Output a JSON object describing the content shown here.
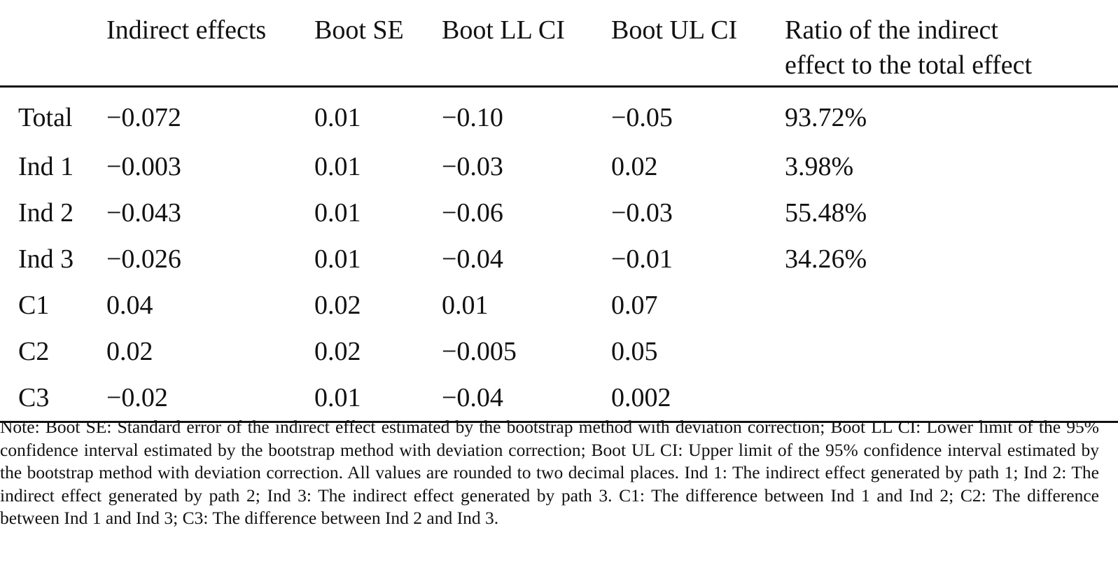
{
  "table": {
    "headers": [
      "",
      "Indirect effects",
      "Boot SE",
      "Boot LL CI",
      "Boot UL CI",
      [
        "Ratio of the indirect",
        "effect to the total effect"
      ]
    ],
    "rows": [
      [
        "Total",
        "−0.072",
        "0.01",
        "−0.10",
        "−0.05",
        "93.72%"
      ],
      [
        "Ind 1",
        "−0.003",
        "0.01",
        "−0.03",
        "0.02",
        "3.98%"
      ],
      [
        "Ind 2",
        "−0.043",
        "0.01",
        "−0.06",
        "−0.03",
        "55.48%"
      ],
      [
        "Ind 3",
        "−0.026",
        "0.01",
        "−0.04",
        "−0.01",
        "34.26%"
      ],
      [
        "C1",
        "0.04",
        "0.02",
        "0.01",
        "0.07",
        ""
      ],
      [
        "C2",
        "0.02",
        "0.02",
        "−0.005",
        "0.05",
        ""
      ],
      [
        "C3",
        "−0.02",
        "0.01",
        "−0.04",
        "0.002",
        ""
      ]
    ]
  },
  "note": "Note: Boot SE: Standard error of the indirect effect estimated by the bootstrap method with deviation correction; Boot LL CI: Lower limit of the 95% confidence interval estimated by the bootstrap method with deviation correction; Boot UL CI: Upper limit of the 95% confidence interval estimated by the bootstrap method with deviation correction. All values are rounded to two decimal places. Ind 1: The indirect effect generated by path 1; Ind 2: The indirect effect generated by path 2; Ind 3: The indirect effect generated by path 3. C1: The difference between Ind 1 and Ind 2; C2: The difference between Ind 1 and Ind 3; C3: The difference between Ind 2 and Ind 3."
}
